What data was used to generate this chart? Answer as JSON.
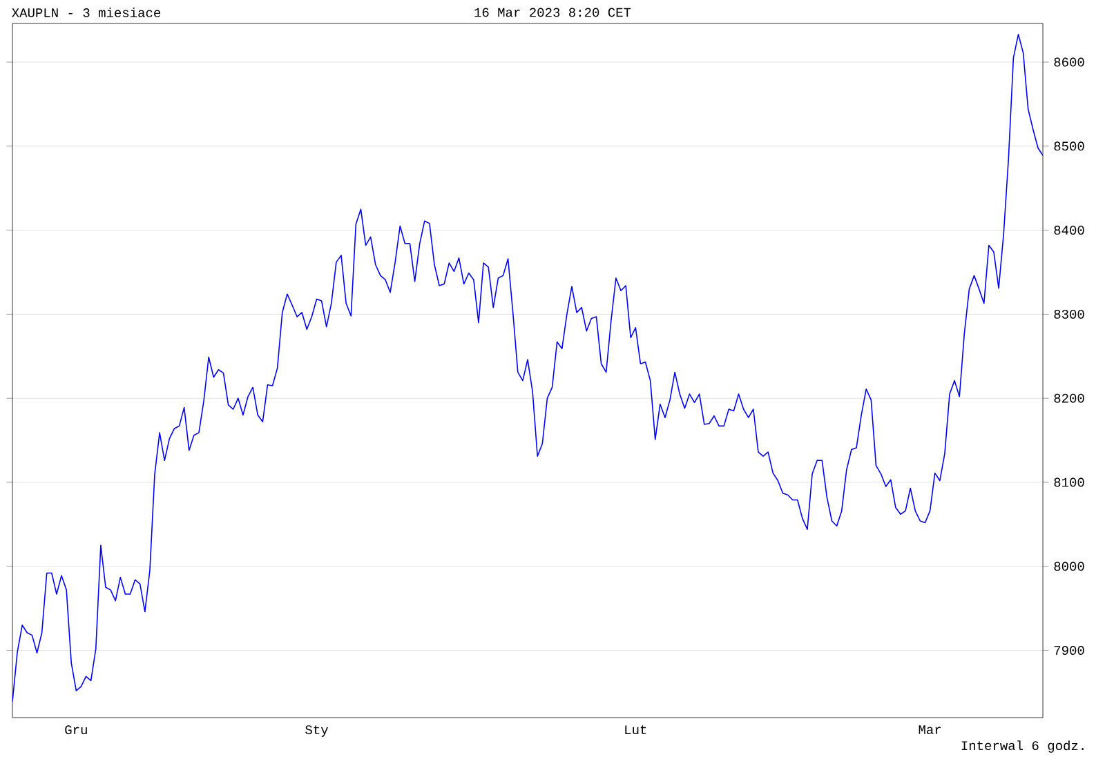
{
  "chart_data": {
    "type": "line",
    "title": "XAUPLN - 3 miesiace",
    "annotations": [
      "16 Mar 2023 8:20 CET",
      "Interwal 6 godz."
    ],
    "categories": [
      null,
      null,
      null,
      null,
      null,
      null,
      null,
      null,
      null,
      null,
      null,
      null,
      null,
      "Gru",
      null,
      null,
      null,
      null,
      null,
      null,
      null,
      null,
      null,
      null,
      null,
      null,
      null,
      null,
      null,
      null,
      null,
      null,
      null,
      null,
      null,
      null,
      null,
      null,
      null,
      null,
      null,
      null,
      null,
      null,
      null,
      null,
      null,
      null,
      null,
      null,
      null,
      null,
      null,
      null,
      null,
      null,
      null,
      null,
      null,
      null,
      null,
      null,
      "Sty",
      null,
      null,
      null,
      null,
      null,
      null,
      null,
      null,
      null,
      null,
      null,
      null,
      null,
      null,
      null,
      null,
      null,
      null,
      null,
      null,
      null,
      null,
      null,
      null,
      null,
      null,
      null,
      null,
      null,
      null,
      null,
      null,
      null,
      null,
      null,
      null,
      null,
      null,
      null,
      null,
      null,
      null,
      null,
      null,
      null,
      null,
      null,
      null,
      null,
      null,
      null,
      null,
      null,
      null,
      null,
      null,
      null,
      null,
      null,
      null,
      null,
      null,
      null,
      null,
      "Lut",
      null,
      null,
      null,
      null,
      null,
      null,
      null,
      null,
      null,
      null,
      null,
      null,
      null,
      null,
      null,
      null,
      null,
      null,
      null,
      null,
      null,
      null,
      null,
      null,
      null,
      null,
      null,
      null,
      null,
      null,
      null,
      null,
      null,
      null,
      null,
      null,
      null,
      null,
      null,
      null,
      null,
      null,
      null,
      null,
      null,
      null,
      null,
      null,
      null,
      null,
      null,
      null,
      null,
      null,
      null,
      null,
      null,
      null,
      null,
      "Mar",
      null,
      null,
      null,
      null,
      null,
      null,
      null,
      null,
      null,
      null,
      null,
      null,
      null,
      null,
      null,
      null,
      null,
      null,
      null,
      null,
      null,
      null,
      null
    ],
    "series": [
      {
        "color": "#0000ff",
        "values": [
          7839,
          7898,
          7930,
          7921,
          7918,
          7897,
          7921,
          7992,
          7992,
          7967,
          7989,
          7972,
          7885,
          7852,
          7857,
          7869,
          7864,
          7902,
          8025,
          7975,
          7972,
          7959,
          7987,
          7967,
          7967,
          7984,
          7979,
          7946,
          7995,
          8110,
          8159,
          8126,
          8152,
          8164,
          8167,
          8189,
          8138,
          8156,
          8159,
          8197,
          8249,
          8225,
          8234,
          8230,
          8192,
          8187,
          8200,
          8180,
          8202,
          8213,
          8180,
          8172,
          8216,
          8215,
          8236,
          8302,
          8324,
          8311,
          8297,
          8302,
          8282,
          8297,
          8318,
          8316,
          8285,
          8313,
          8362,
          8370,
          8313,
          8298,
          8407,
          8425,
          8382,
          8392,
          8359,
          8346,
          8341,
          8326,
          8362,
          8405,
          8384,
          8384,
          8339,
          8384,
          8411,
          8408,
          8359,
          8334,
          8336,
          8361,
          8351,
          8367,
          8336,
          8349,
          8341,
          8290,
          8361,
          8356,
          8308,
          8343,
          8346,
          8366,
          8302,
          8231,
          8221,
          8246,
          8208,
          8131,
          8146,
          8200,
          8213,
          8267,
          8259,
          8300,
          8333,
          8302,
          8308,
          8280,
          8295,
          8297,
          8241,
          8231,
          8292,
          8343,
          8328,
          8334,
          8272,
          8284,
          8241,
          8243,
          8221,
          8151,
          8193,
          8177,
          8198,
          8231,
          8205,
          8188,
          8205,
          8195,
          8205,
          8169,
          8170,
          8179,
          8167,
          8167,
          8187,
          8185,
          8205,
          8187,
          8177,
          8187,
          8136,
          8131,
          8136,
          8111,
          8102,
          8087,
          8085,
          8079,
          8079,
          8057,
          8044,
          8110,
          8126,
          8126,
          8082,
          8054,
          8048,
          8066,
          8115,
          8139,
          8141,
          8180,
          8211,
          8198,
          8120,
          8110,
          8095,
          8103,
          8070,
          8062,
          8066,
          8093,
          8066,
          8054,
          8052,
          8066,
          8111,
          8102,
          8134,
          8205,
          8221,
          8202,
          8277,
          8330,
          8346,
          8330,
          8313,
          8382,
          8374,
          8331,
          8395,
          8485,
          8605,
          8633,
          8611,
          8544,
          8520,
          8498,
          8489
        ]
      }
    ],
    "ylim": [
      7820,
      8646
    ],
    "yticks": [
      7900,
      8000,
      8100,
      8200,
      8300,
      8400,
      8500,
      8600
    ],
    "grid": "y"
  }
}
